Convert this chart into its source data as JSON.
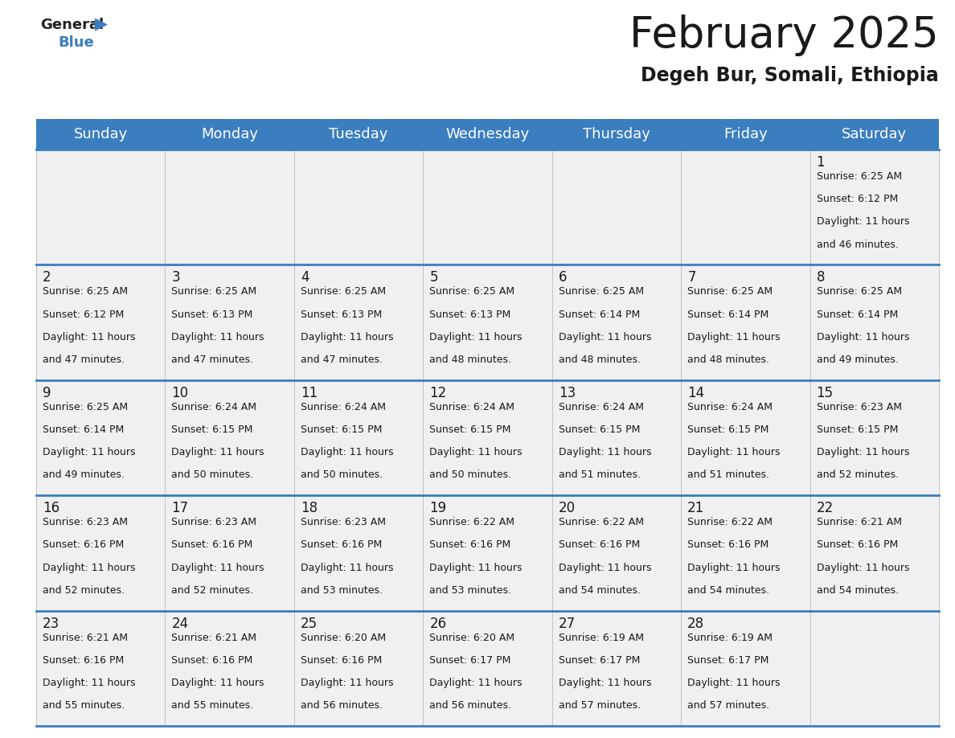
{
  "title": "February 2025",
  "subtitle": "Degeh Bur, Somali, Ethiopia",
  "header_color": "#3a7ebf",
  "header_text_color": "#ffffff",
  "day_names": [
    "Sunday",
    "Monday",
    "Tuesday",
    "Wednesday",
    "Thursday",
    "Friday",
    "Saturday"
  ],
  "title_fontsize": 38,
  "subtitle_fontsize": 17,
  "header_fontsize": 13,
  "cell_day_fontsize": 12,
  "cell_text_fontsize": 9,
  "background_color": "#ffffff",
  "cell_bg_color": "#f0f0f0",
  "separator_color": "#3a7ebf",
  "text_color": "#1a1a1a",
  "days": [
    {
      "day": 1,
      "col": 6,
      "row": 0,
      "sunrise": "6:25 AM",
      "sunset": "6:12 PM",
      "daylight_hours": 11,
      "daylight_minutes": 46
    },
    {
      "day": 2,
      "col": 0,
      "row": 1,
      "sunrise": "6:25 AM",
      "sunset": "6:12 PM",
      "daylight_hours": 11,
      "daylight_minutes": 47
    },
    {
      "day": 3,
      "col": 1,
      "row": 1,
      "sunrise": "6:25 AM",
      "sunset": "6:13 PM",
      "daylight_hours": 11,
      "daylight_minutes": 47
    },
    {
      "day": 4,
      "col": 2,
      "row": 1,
      "sunrise": "6:25 AM",
      "sunset": "6:13 PM",
      "daylight_hours": 11,
      "daylight_minutes": 47
    },
    {
      "day": 5,
      "col": 3,
      "row": 1,
      "sunrise": "6:25 AM",
      "sunset": "6:13 PM",
      "daylight_hours": 11,
      "daylight_minutes": 48
    },
    {
      "day": 6,
      "col": 4,
      "row": 1,
      "sunrise": "6:25 AM",
      "sunset": "6:14 PM",
      "daylight_hours": 11,
      "daylight_minutes": 48
    },
    {
      "day": 7,
      "col": 5,
      "row": 1,
      "sunrise": "6:25 AM",
      "sunset": "6:14 PM",
      "daylight_hours": 11,
      "daylight_minutes": 48
    },
    {
      "day": 8,
      "col": 6,
      "row": 1,
      "sunrise": "6:25 AM",
      "sunset": "6:14 PM",
      "daylight_hours": 11,
      "daylight_minutes": 49
    },
    {
      "day": 9,
      "col": 0,
      "row": 2,
      "sunrise": "6:25 AM",
      "sunset": "6:14 PM",
      "daylight_hours": 11,
      "daylight_minutes": 49
    },
    {
      "day": 10,
      "col": 1,
      "row": 2,
      "sunrise": "6:24 AM",
      "sunset": "6:15 PM",
      "daylight_hours": 11,
      "daylight_minutes": 50
    },
    {
      "day": 11,
      "col": 2,
      "row": 2,
      "sunrise": "6:24 AM",
      "sunset": "6:15 PM",
      "daylight_hours": 11,
      "daylight_minutes": 50
    },
    {
      "day": 12,
      "col": 3,
      "row": 2,
      "sunrise": "6:24 AM",
      "sunset": "6:15 PM",
      "daylight_hours": 11,
      "daylight_minutes": 50
    },
    {
      "day": 13,
      "col": 4,
      "row": 2,
      "sunrise": "6:24 AM",
      "sunset": "6:15 PM",
      "daylight_hours": 11,
      "daylight_minutes": 51
    },
    {
      "day": 14,
      "col": 5,
      "row": 2,
      "sunrise": "6:24 AM",
      "sunset": "6:15 PM",
      "daylight_hours": 11,
      "daylight_minutes": 51
    },
    {
      "day": 15,
      "col": 6,
      "row": 2,
      "sunrise": "6:23 AM",
      "sunset": "6:15 PM",
      "daylight_hours": 11,
      "daylight_minutes": 52
    },
    {
      "day": 16,
      "col": 0,
      "row": 3,
      "sunrise": "6:23 AM",
      "sunset": "6:16 PM",
      "daylight_hours": 11,
      "daylight_minutes": 52
    },
    {
      "day": 17,
      "col": 1,
      "row": 3,
      "sunrise": "6:23 AM",
      "sunset": "6:16 PM",
      "daylight_hours": 11,
      "daylight_minutes": 52
    },
    {
      "day": 18,
      "col": 2,
      "row": 3,
      "sunrise": "6:23 AM",
      "sunset": "6:16 PM",
      "daylight_hours": 11,
      "daylight_minutes": 53
    },
    {
      "day": 19,
      "col": 3,
      "row": 3,
      "sunrise": "6:22 AM",
      "sunset": "6:16 PM",
      "daylight_hours": 11,
      "daylight_minutes": 53
    },
    {
      "day": 20,
      "col": 4,
      "row": 3,
      "sunrise": "6:22 AM",
      "sunset": "6:16 PM",
      "daylight_hours": 11,
      "daylight_minutes": 54
    },
    {
      "day": 21,
      "col": 5,
      "row": 3,
      "sunrise": "6:22 AM",
      "sunset": "6:16 PM",
      "daylight_hours": 11,
      "daylight_minutes": 54
    },
    {
      "day": 22,
      "col": 6,
      "row": 3,
      "sunrise": "6:21 AM",
      "sunset": "6:16 PM",
      "daylight_hours": 11,
      "daylight_minutes": 54
    },
    {
      "day": 23,
      "col": 0,
      "row": 4,
      "sunrise": "6:21 AM",
      "sunset": "6:16 PM",
      "daylight_hours": 11,
      "daylight_minutes": 55
    },
    {
      "day": 24,
      "col": 1,
      "row": 4,
      "sunrise": "6:21 AM",
      "sunset": "6:16 PM",
      "daylight_hours": 11,
      "daylight_minutes": 55
    },
    {
      "day": 25,
      "col": 2,
      "row": 4,
      "sunrise": "6:20 AM",
      "sunset": "6:16 PM",
      "daylight_hours": 11,
      "daylight_minutes": 56
    },
    {
      "day": 26,
      "col": 3,
      "row": 4,
      "sunrise": "6:20 AM",
      "sunset": "6:17 PM",
      "daylight_hours": 11,
      "daylight_minutes": 56
    },
    {
      "day": 27,
      "col": 4,
      "row": 4,
      "sunrise": "6:19 AM",
      "sunset": "6:17 PM",
      "daylight_hours": 11,
      "daylight_minutes": 57
    },
    {
      "day": 28,
      "col": 5,
      "row": 4,
      "sunrise": "6:19 AM",
      "sunset": "6:17 PM",
      "daylight_hours": 11,
      "daylight_minutes": 57
    }
  ]
}
